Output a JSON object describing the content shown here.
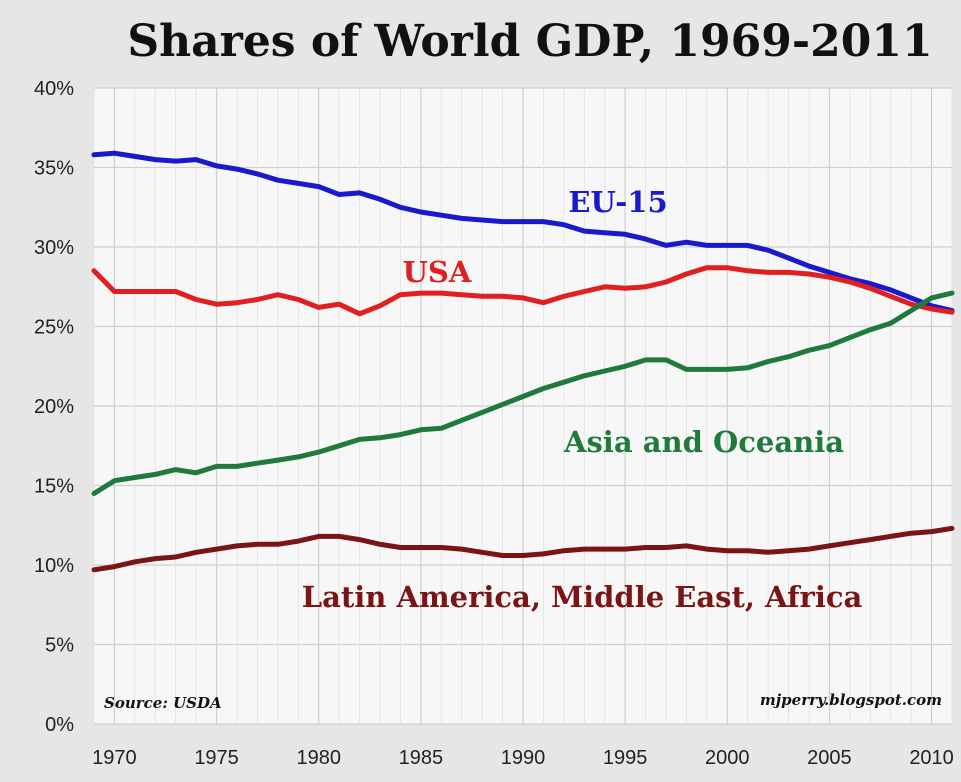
{
  "chart_data": {
    "type": "line",
    "title": "Shares of World GDP, 1969-2011",
    "xlim": [
      1969,
      2011
    ],
    "ylim": [
      0,
      40
    ],
    "y_ticks": [
      "0%",
      "5%",
      "10%",
      "15%",
      "20%",
      "25%",
      "30%",
      "35%",
      "40%"
    ],
    "x_ticks": [
      "1970",
      "1975",
      "1980",
      "1985",
      "1990",
      "1995",
      "2000",
      "2005",
      "2010"
    ],
    "grid": true,
    "x": [
      1969,
      1970,
      1971,
      1972,
      1973,
      1974,
      1975,
      1976,
      1977,
      1978,
      1979,
      1980,
      1981,
      1982,
      1983,
      1984,
      1985,
      1986,
      1987,
      1988,
      1989,
      1990,
      1991,
      1992,
      1993,
      1994,
      1995,
      1996,
      1997,
      1998,
      1999,
      2000,
      2001,
      2002,
      2003,
      2004,
      2005,
      2006,
      2007,
      2008,
      2009,
      2010,
      2011
    ],
    "series": [
      {
        "name": "EU-15",
        "color": "#1a1acc",
        "values": [
          35.8,
          35.9,
          35.7,
          35.5,
          35.4,
          35.5,
          35.1,
          34.9,
          34.6,
          34.2,
          34.0,
          33.8,
          33.3,
          33.4,
          33.0,
          32.5,
          32.2,
          32.0,
          31.8,
          31.7,
          31.6,
          31.6,
          31.6,
          31.4,
          31.0,
          30.9,
          30.8,
          30.5,
          30.1,
          30.3,
          30.1,
          30.1,
          30.1,
          29.8,
          29.3,
          28.8,
          28.4,
          28.0,
          27.7,
          27.3,
          26.8,
          26.3,
          26.0
        ]
      },
      {
        "name": "USA",
        "color": "#e02020",
        "values": [
          28.5,
          27.2,
          27.2,
          27.2,
          27.2,
          26.7,
          26.4,
          26.5,
          26.7,
          27.0,
          26.7,
          26.2,
          26.4,
          25.8,
          26.3,
          27.0,
          27.1,
          27.1,
          27.0,
          26.9,
          26.9,
          26.8,
          26.5,
          26.9,
          27.2,
          27.5,
          27.4,
          27.5,
          27.8,
          28.3,
          28.7,
          28.7,
          28.5,
          28.4,
          28.4,
          28.3,
          28.1,
          27.8,
          27.4,
          26.9,
          26.4,
          26.1,
          25.9
        ]
      },
      {
        "name": "Asia and Oceania",
        "color": "#1f7a3c",
        "values": [
          14.5,
          15.3,
          15.5,
          15.7,
          16.0,
          15.8,
          16.2,
          16.2,
          16.4,
          16.6,
          16.8,
          17.1,
          17.5,
          17.9,
          18.0,
          18.2,
          18.5,
          18.6,
          19.1,
          19.6,
          20.1,
          20.6,
          21.1,
          21.5,
          21.9,
          22.2,
          22.5,
          22.9,
          22.9,
          22.3,
          22.3,
          22.3,
          22.4,
          22.8,
          23.1,
          23.5,
          23.8,
          24.3,
          24.8,
          25.2,
          26.0,
          26.8,
          27.1
        ]
      },
      {
        "name": "Latin America, Middle East, Africa",
        "color": "#7a1515",
        "values": [
          9.7,
          9.9,
          10.2,
          10.4,
          10.5,
          10.8,
          11.0,
          11.2,
          11.3,
          11.3,
          11.5,
          11.8,
          11.8,
          11.6,
          11.3,
          11.1,
          11.1,
          11.1,
          11.0,
          10.8,
          10.6,
          10.6,
          10.7,
          10.9,
          11.0,
          11.0,
          11.0,
          11.1,
          11.1,
          11.2,
          11.0,
          10.9,
          10.9,
          10.8,
          10.9,
          11.0,
          11.2,
          11.4,
          11.6,
          11.8,
          12.0,
          12.1,
          12.3
        ]
      }
    ],
    "annotations": {
      "source": "Source: USDA",
      "credit": "mjperry.blogspot.com"
    }
  }
}
